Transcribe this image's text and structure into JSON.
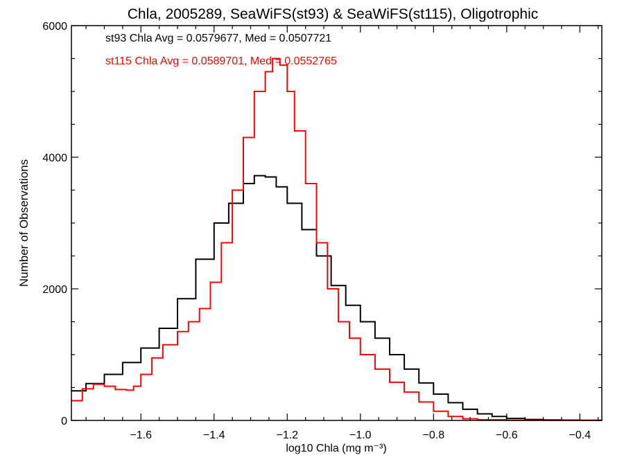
{
  "chart_data": {
    "type": "line",
    "title": "Chla, 2005289, SeaWiFS(st93) & SeaWiFS(st115), Oligotrophic",
    "xlabel": "log10 Chla (mg m⁻³)",
    "ylabel": "Number of Observations",
    "xlim": [
      -1.79,
      -0.34
    ],
    "ylim": [
      0,
      6000
    ],
    "x_ticks": [
      "−1.6",
      "−1.4",
      "−1.2",
      "−1.0",
      "−0.8",
      "−0.6",
      "−0.4"
    ],
    "y_ticks": [
      "0",
      "2000",
      "4000",
      "6000"
    ],
    "grid": false,
    "annotations": [
      {
        "text": "st93 Chla Avg = 0.0579677, Med = 0.0507721",
        "color": "#000000"
      },
      {
        "text": "st115 Chla Avg = 0.0589701, Med = 0.0552765",
        "color": "#ff0000"
      }
    ],
    "series": [
      {
        "color": "#000000",
        "points": [
          [
            -1.79,
            450
          ],
          [
            -1.75,
            560
          ],
          [
            -1.7,
            700
          ],
          [
            -1.65,
            880
          ],
          [
            -1.6,
            1100
          ],
          [
            -1.55,
            1400
          ],
          [
            -1.5,
            1850
          ],
          [
            -1.45,
            2450
          ],
          [
            -1.4,
            3000
          ],
          [
            -1.36,
            3300
          ],
          [
            -1.32,
            3600
          ],
          [
            -1.29,
            3720
          ],
          [
            -1.26,
            3700
          ],
          [
            -1.23,
            3550
          ],
          [
            -1.2,
            3300
          ],
          [
            -1.16,
            2900
          ],
          [
            -1.12,
            2500
          ],
          [
            -1.08,
            2050
          ],
          [
            -1.04,
            1750
          ],
          [
            -1.0,
            1500
          ],
          [
            -0.96,
            1250
          ],
          [
            -0.92,
            1000
          ],
          [
            -0.88,
            780
          ],
          [
            -0.84,
            570
          ],
          [
            -0.8,
            400
          ],
          [
            -0.76,
            270
          ],
          [
            -0.72,
            170
          ],
          [
            -0.68,
            100
          ],
          [
            -0.64,
            60
          ],
          [
            -0.6,
            30
          ],
          [
            -0.55,
            15
          ],
          [
            -0.5,
            8
          ],
          [
            -0.45,
            5
          ],
          [
            -0.4,
            3
          ],
          [
            -0.34,
            0
          ]
        ]
      },
      {
        "color": "#ff0000",
        "points": [
          [
            -1.79,
            300
          ],
          [
            -1.76,
            480
          ],
          [
            -1.73,
            550
          ],
          [
            -1.7,
            520
          ],
          [
            -1.67,
            470
          ],
          [
            -1.64,
            460
          ],
          [
            -1.62,
            520
          ],
          [
            -1.6,
            700
          ],
          [
            -1.57,
            950
          ],
          [
            -1.54,
            1150
          ],
          [
            -1.5,
            1350
          ],
          [
            -1.47,
            1500
          ],
          [
            -1.44,
            1700
          ],
          [
            -1.41,
            2100
          ],
          [
            -1.38,
            2700
          ],
          [
            -1.35,
            3500
          ],
          [
            -1.32,
            4300
          ],
          [
            -1.29,
            5000
          ],
          [
            -1.26,
            5300
          ],
          [
            -1.24,
            5500
          ],
          [
            -1.22,
            5400
          ],
          [
            -1.2,
            5000
          ],
          [
            -1.18,
            4400
          ],
          [
            -1.15,
            3600
          ],
          [
            -1.12,
            2700
          ],
          [
            -1.09,
            2000
          ],
          [
            -1.06,
            1500
          ],
          [
            -1.03,
            1250
          ],
          [
            -1.0,
            1000
          ],
          [
            -0.96,
            780
          ],
          [
            -0.92,
            580
          ],
          [
            -0.88,
            430
          ],
          [
            -0.84,
            280
          ],
          [
            -0.8,
            140
          ],
          [
            -0.76,
            60
          ],
          [
            -0.72,
            25
          ],
          [
            -0.68,
            10
          ],
          [
            -0.6,
            3
          ],
          [
            -0.5,
            1
          ],
          [
            -0.34,
            0
          ]
        ]
      }
    ]
  }
}
